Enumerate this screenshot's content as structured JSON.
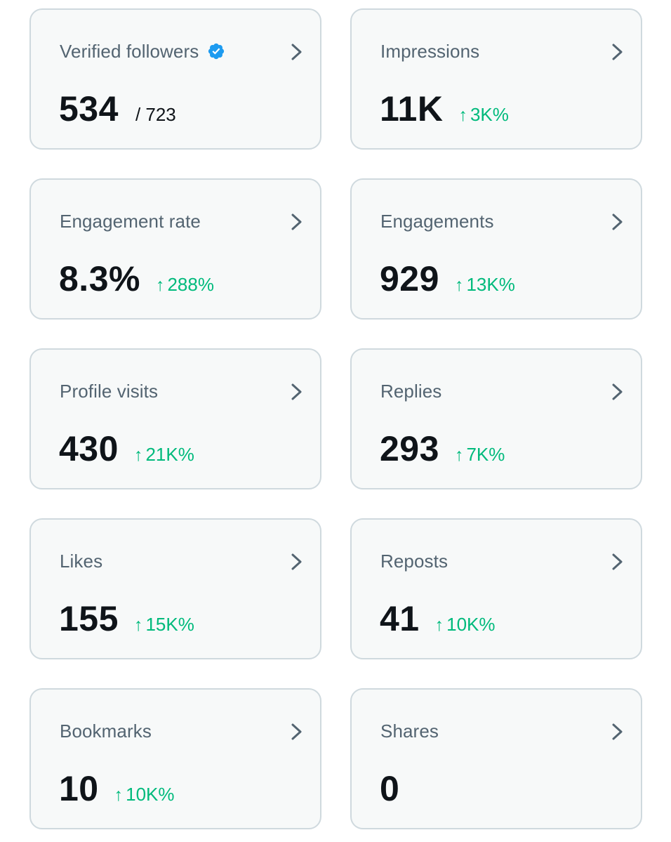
{
  "colors": {
    "card_bg": "#f7f9f9",
    "card_border": "#cfd9de",
    "label": "#536471",
    "value": "#0f1419",
    "positive_change": "#00ba7c",
    "verified_badge": "#1d9bf0"
  },
  "icons": {
    "chevron": "chevron-right-icon",
    "verified": "verified-badge-icon",
    "arrow": "arrow-up-icon"
  },
  "cards": {
    "verified_followers": {
      "label": "Verified followers",
      "value": "534",
      "total": "/ 723"
    },
    "impressions": {
      "label": "Impressions",
      "value": "11K",
      "arrow": "↑",
      "change": "3K%"
    },
    "engagement_rate": {
      "label": "Engagement rate",
      "value": "8.3%",
      "arrow": "↑",
      "change": "288%"
    },
    "engagements": {
      "label": "Engagements",
      "value": "929",
      "arrow": "↑",
      "change": "13K%"
    },
    "profile_visits": {
      "label": "Profile visits",
      "value": "430",
      "arrow": "↑",
      "change": "21K%"
    },
    "replies": {
      "label": "Replies",
      "value": "293",
      "arrow": "↑",
      "change": "7K%"
    },
    "likes": {
      "label": "Likes",
      "value": "155",
      "arrow": "↑",
      "change": "15K%"
    },
    "reposts": {
      "label": "Reposts",
      "value": "41",
      "arrow": "↑",
      "change": "10K%"
    },
    "bookmarks": {
      "label": "Bookmarks",
      "value": "10",
      "arrow": "↑",
      "change": "10K%"
    },
    "shares": {
      "label": "Shares",
      "value": "0"
    }
  }
}
